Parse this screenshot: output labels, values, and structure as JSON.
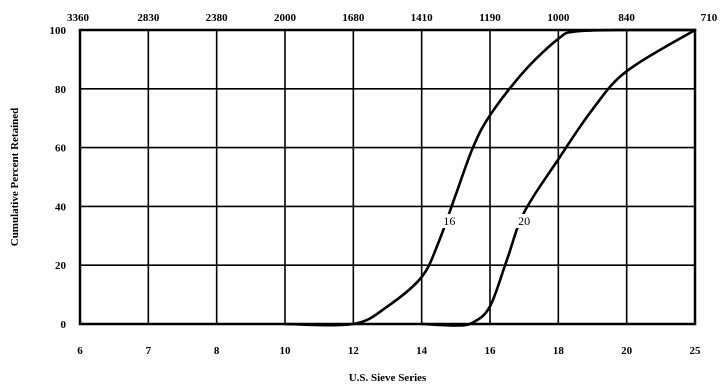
{
  "chart_data": {
    "type": "line",
    "title": "",
    "xlabel": "U.S. Sieve Series",
    "ylabel": "Cumulative Percent Retained",
    "x_ticks": [
      "6",
      "7",
      "8",
      "10",
      "12",
      "14",
      "16",
      "18",
      "20",
      "25"
    ],
    "x_top_ticks": [
      "3360",
      "2830",
      "2380",
      "2000",
      "1680",
      "1410",
      "1190",
      "1000",
      "840",
      "710"
    ],
    "y_ticks": [
      "0",
      "20",
      "40",
      "60",
      "80",
      "100"
    ],
    "ylim": [
      0,
      100
    ],
    "grid": true,
    "series": [
      {
        "name": "16",
        "points": [
          {
            "x": 10,
            "y": 0
          },
          {
            "x": 12,
            "y": 0
          },
          {
            "x": 13,
            "y": 6
          },
          {
            "x": 14,
            "y": 16
          },
          {
            "x": 14.5,
            "y": 28
          },
          {
            "x": 15,
            "y": 44
          },
          {
            "x": 15.5,
            "y": 60
          },
          {
            "x": 16,
            "y": 71
          },
          {
            "x": 17,
            "y": 86
          },
          {
            "x": 18,
            "y": 97
          },
          {
            "x": 18.5,
            "y": 99.5
          },
          {
            "x": 20,
            "y": 100
          },
          {
            "x": 25,
            "y": 100
          }
        ]
      },
      {
        "name": "20",
        "points": [
          {
            "x": 14,
            "y": 0
          },
          {
            "x": 15,
            "y": -0.5
          },
          {
            "x": 15.5,
            "y": 0.5
          },
          {
            "x": 16,
            "y": 6
          },
          {
            "x": 16.5,
            "y": 22
          },
          {
            "x": 17,
            "y": 38
          },
          {
            "x": 18,
            "y": 56
          },
          {
            "x": 19,
            "y": 73
          },
          {
            "x": 20,
            "y": 86
          },
          {
            "x": 25,
            "y": 100
          }
        ]
      }
    ]
  }
}
